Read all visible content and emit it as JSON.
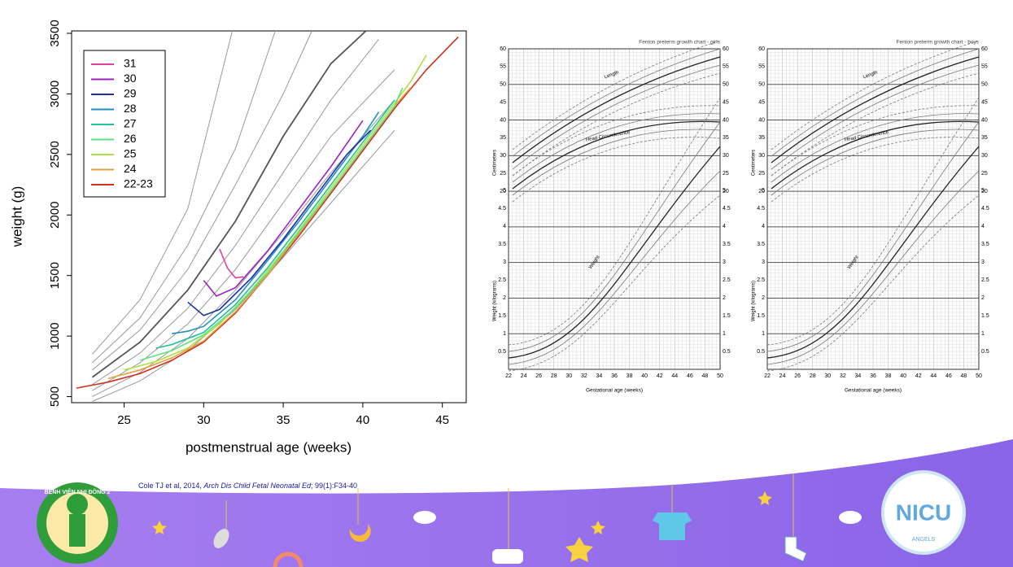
{
  "chart_data": {
    "type": "line",
    "x_label": "postmenstrual age (weeks)",
    "y_label": "weight (g)",
    "xlim": [
      21.7,
      46.5
    ],
    "ylim": [
      450,
      3520
    ],
    "xticks": [
      25,
      30,
      35,
      40,
      45
    ],
    "yticks": [
      500,
      1000,
      1500,
      2000,
      2500,
      3000,
      3500
    ],
    "legend": "top-left",
    "series": [
      {
        "name": "31",
        "color": "#e040a0",
        "x": [
          31,
          31.5,
          32,
          32.5
        ],
        "values": [
          1720,
          1560,
          1480,
          1490
        ]
      },
      {
        "name": "30",
        "color": "#a020c0",
        "x": [
          30,
          30.8,
          32,
          34,
          36,
          38,
          40
        ],
        "values": [
          1460,
          1330,
          1400,
          1700,
          2050,
          2400,
          2780
        ]
      },
      {
        "name": "29",
        "color": "#2030a0",
        "x": [
          29,
          30,
          31,
          33,
          35,
          37,
          39,
          40.5
        ],
        "values": [
          1280,
          1170,
          1220,
          1480,
          1800,
          2150,
          2500,
          2700
        ]
      },
      {
        "name": "28",
        "color": "#2090c0",
        "x": [
          28,
          29,
          30,
          32,
          34,
          36,
          38,
          40,
          41
        ],
        "values": [
          1020,
          1040,
          1080,
          1300,
          1620,
          1950,
          2300,
          2650,
          2850
        ]
      },
      {
        "name": "27",
        "color": "#20c0a0",
        "x": [
          27,
          28,
          30,
          32,
          34,
          36,
          38,
          40,
          42
        ],
        "values": [
          900,
          930,
          1030,
          1260,
          1560,
          1900,
          2250,
          2600,
          2950
        ]
      },
      {
        "name": "26",
        "color": "#60e080",
        "x": [
          26,
          28,
          30,
          32,
          34,
          36,
          38,
          40,
          42,
          42.5
        ],
        "values": [
          800,
          880,
          1010,
          1230,
          1520,
          1860,
          2200,
          2550,
          2900,
          3050
        ]
      },
      {
        "name": "25",
        "color": "#b0e040",
        "x": [
          25,
          27,
          29,
          31,
          33,
          35,
          37,
          39,
          41,
          43,
          44
        ],
        "values": [
          720,
          790,
          900,
          1100,
          1380,
          1700,
          2050,
          2400,
          2750,
          3100,
          3320
        ]
      },
      {
        "name": "24",
        "color": "#e0a040",
        "x": [
          24,
          26,
          28,
          30,
          32,
          34,
          36,
          38,
          40,
          42,
          43
        ],
        "values": [
          650,
          720,
          820,
          960,
          1200,
          1500,
          1850,
          2200,
          2550,
          2900,
          3050
        ]
      },
      {
        "name": "22-23",
        "color": "#d03020",
        "x": [
          22,
          24,
          26,
          28,
          30,
          32,
          34,
          36,
          38,
          40,
          42,
          44,
          46
        ],
        "values": [
          570,
          620,
          690,
          800,
          950,
          1190,
          1500,
          1830,
          2180,
          2530,
          2880,
          3200,
          3470
        ]
      }
    ],
    "reference_lines": [
      {
        "color": "#999999",
        "x": [
          23,
          26,
          29,
          31.8
        ],
        "values": [
          850,
          1300,
          2050,
          3520
        ]
      },
      {
        "color": "#999999",
        "x": [
          23,
          26,
          29,
          32,
          34.5
        ],
        "values": [
          780,
          1150,
          1750,
          2550,
          3520
        ]
      },
      {
        "color": "#999999",
        "x": [
          23,
          26,
          29,
          32,
          35,
          36.8
        ],
        "values": [
          720,
          1050,
          1550,
          2250,
          3000,
          3520
        ]
      },
      {
        "color": "#555555",
        "x": [
          23,
          26,
          29,
          32,
          35,
          38,
          40.2
        ],
        "values": [
          660,
          950,
          1380,
          1950,
          2650,
          3250,
          3520
        ]
      },
      {
        "color": "#999999",
        "x": [
          23,
          26,
          29,
          32,
          35,
          38,
          41
        ],
        "values": [
          600,
          860,
          1230,
          1750,
          2350,
          2950,
          3450
        ]
      },
      {
        "color": "#999999",
        "x": [
          23,
          26,
          29,
          32,
          35,
          38,
          42
        ],
        "values": [
          550,
          780,
          1100,
          1550,
          2100,
          2650,
          3200
        ]
      },
      {
        "color": "#999999",
        "x": [
          23,
          26,
          29,
          32,
          35,
          38,
          42
        ],
        "values": [
          500,
          700,
          980,
          1380,
          1850,
          2350,
          2950
        ]
      },
      {
        "color": "#999999",
        "x": [
          23,
          26,
          29,
          32,
          35,
          38,
          42
        ],
        "values": [
          460,
          630,
          880,
          1220,
          1650,
          2100,
          2700
        ]
      }
    ]
  },
  "fenton": {
    "girls_title": "Fenton preterm growth chart - girls",
    "boys_title": "Fenton preterm growth chart - boys",
    "length_label": "Length",
    "head_label": "Head Circumference",
    "weight_label": "Weight",
    "x_label": "Gestational age (weeks)",
    "cm_label": "Centimeters",
    "kg_label": "Weight (kilograms)",
    "x_ticks": [
      22,
      24,
      26,
      28,
      30,
      32,
      34,
      36,
      38,
      40,
      42,
      44,
      46,
      48,
      50
    ],
    "cm_ticks": [
      60,
      55,
      50,
      45,
      40,
      35,
      30,
      25,
      20
    ],
    "kg_ticks": [
      0.5,
      1,
      1.5,
      2,
      2.5,
      3,
      3.5,
      4,
      4.5,
      5
    ]
  },
  "citation": {
    "authors": "Cole TJ et al, 2014,",
    "journal": "Arch Dis Child Fetal Neonatal Ed",
    "issue": "; 99(1):F34-40"
  },
  "logos": {
    "hospital": "BỆNH VIỆN NHI ĐỒNG 2",
    "nicu": "NICU",
    "angels": "ANGELS"
  }
}
